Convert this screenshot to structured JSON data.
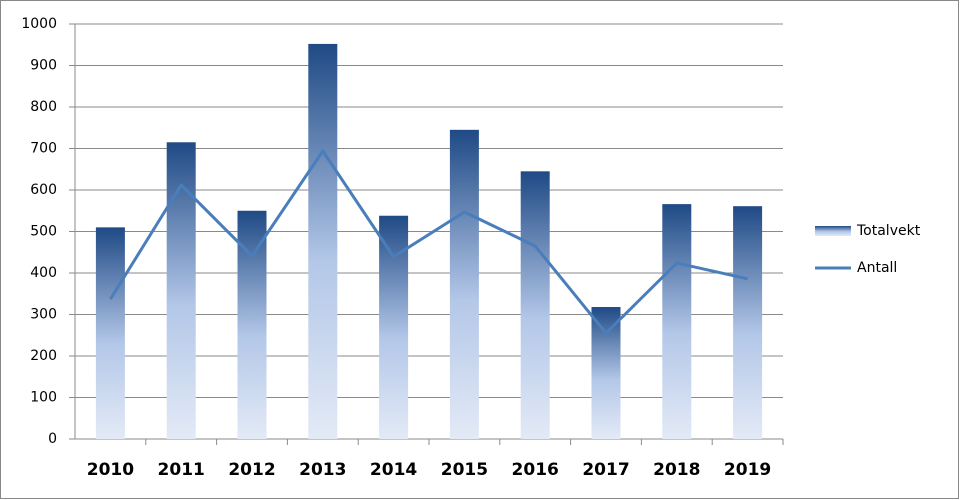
{
  "chart_data": {
    "type": "bar_line",
    "categories": [
      "2010",
      "2011",
      "2012",
      "2013",
      "2014",
      "2015",
      "2016",
      "2017",
      "2018",
      "2019"
    ],
    "series": [
      {
        "name": "Totalvekt",
        "type": "bar",
        "color": "#1f4a85",
        "values": [
          510,
          715,
          550,
          952,
          538,
          745,
          645,
          318,
          566,
          561
        ]
      },
      {
        "name": "Antall",
        "type": "line",
        "color": "#4a7ebb",
        "values": [
          337,
          612,
          441,
          694,
          439,
          547,
          465,
          255,
          424,
          386
        ]
      }
    ],
    "ylim": [
      0,
      1000
    ],
    "yticks": [
      0,
      100,
      200,
      300,
      400,
      500,
      600,
      700,
      800,
      900,
      1000
    ],
    "grid": true,
    "legend": "right"
  }
}
